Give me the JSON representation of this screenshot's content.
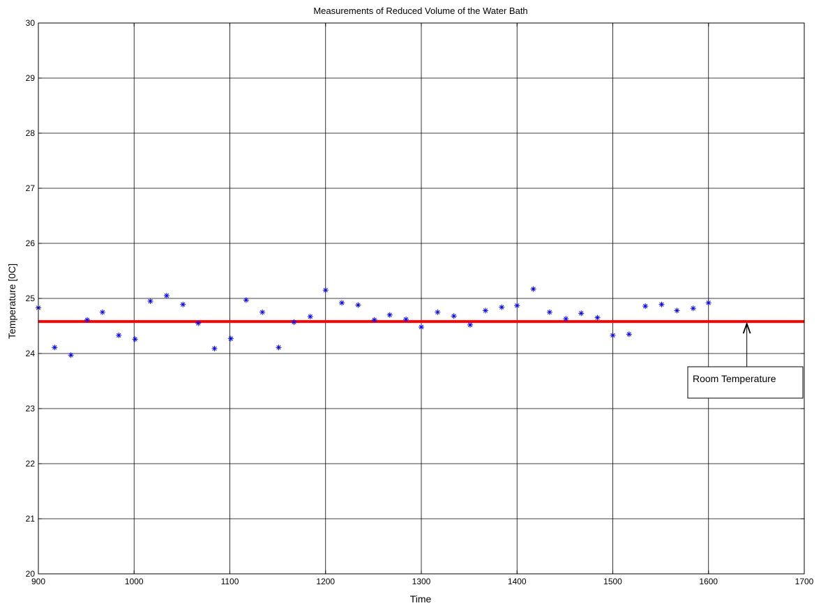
{
  "chart_data": {
    "type": "scatter",
    "title": "Measurements of Reduced Volume of the Water Bath",
    "xlabel": "Time",
    "ylabel": "Temperature [0C]",
    "xlim": [
      900,
      1700
    ],
    "ylim": [
      20,
      30
    ],
    "xticks": [
      900,
      1000,
      1100,
      1200,
      1300,
      1400,
      1500,
      1600,
      1700
    ],
    "yticks": [
      20,
      21,
      22,
      23,
      24,
      25,
      26,
      27,
      28,
      29,
      30
    ],
    "grid": true,
    "marker": "*",
    "marker_color": "#0000ff",
    "series": [
      {
        "x": [
          900,
          917,
          934,
          951,
          967,
          984,
          1001,
          1017,
          1034,
          1051,
          1067,
          1084,
          1101,
          1117,
          1134,
          1151,
          1167,
          1184,
          1200,
          1217,
          1234,
          1251,
          1267,
          1284,
          1300,
          1317,
          1334,
          1351,
          1367,
          1384,
          1400,
          1417,
          1434,
          1451,
          1467,
          1484,
          1500,
          1517,
          1534,
          1551,
          1567,
          1584,
          1600
        ],
        "y": [
          24.83,
          24.11,
          23.97,
          24.61,
          24.75,
          24.33,
          24.26,
          24.95,
          25.05,
          24.89,
          24.55,
          24.09,
          24.27,
          24.97,
          24.75,
          24.11,
          24.57,
          24.67,
          25.15,
          24.92,
          24.88,
          24.61,
          24.7,
          24.62,
          24.48,
          24.75,
          24.68,
          24.52,
          24.78,
          24.84,
          24.87,
          25.17,
          24.75,
          24.63,
          24.73,
          24.65,
          24.33,
          24.35,
          24.86,
          24.89,
          24.78,
          24.82,
          24.92
        ]
      }
    ],
    "reference_line": {
      "y": 24.58,
      "color": "#ff0000"
    },
    "annotation": {
      "text": "Room Temperature",
      "arrow_target": [
        1640,
        24.58
      ]
    }
  }
}
